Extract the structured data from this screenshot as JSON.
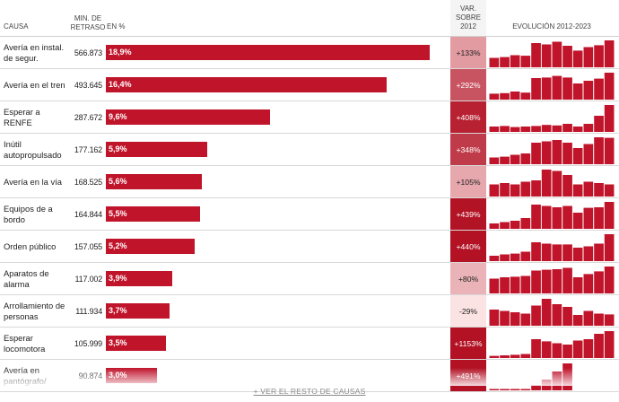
{
  "headers": {
    "causa": "Causa",
    "min_line1": "Min. de",
    "min_line2": "retraso",
    "pct": "En %",
    "var_line1": "Var.",
    "var_line2": "sobre",
    "var_line3": "2012",
    "evolucion": "Evolución 2012-2023"
  },
  "colors": {
    "bar": "#c0142a",
    "var_scale_low": "#fbe3e3",
    "var_scale_high": "#b21224"
  },
  "chart_data": {
    "type": "table",
    "columns": [
      "Causa",
      "Min. de retraso",
      "En %",
      "Var. sobre 2012",
      "Evolución 2012-2023"
    ],
    "evolution_years": [
      2012,
      2013,
      2014,
      2015,
      2016,
      2017,
      2018,
      2019,
      2020,
      2021,
      2022,
      2023
    ],
    "rows": [
      {
        "causa": "Avería en instal. de segur.",
        "minutos": "566.873",
        "pct_label": "18,9%",
        "pct": 18.9,
        "var_label": "+133%",
        "var": 133,
        "evo": [
          35,
          38,
          45,
          43,
          90,
          85,
          95,
          80,
          62,
          75,
          82,
          100
        ]
      },
      {
        "causa": "Avería en el tren",
        "minutos": "493.645",
        "pct_label": "16,4%",
        "pct": 16.4,
        "var_label": "+292%",
        "var": 292,
        "evo": [
          22,
          24,
          30,
          26,
          80,
          82,
          88,
          82,
          60,
          70,
          78,
          100
        ]
      },
      {
        "causa": "Esperar a RENFE",
        "minutos": "287.672",
        "pct_label": "9,6%",
        "pct": 9.6,
        "var_label": "+408%",
        "var": 408,
        "evo": [
          20,
          22,
          18,
          20,
          22,
          26,
          24,
          30,
          20,
          30,
          60,
          100
        ]
      },
      {
        "causa": "Inútil autopropulsado",
        "minutos": "177.162",
        "pct_label": "5,9%",
        "pct": 5.9,
        "var_label": "+348%",
        "var": 348,
        "evo": [
          25,
          28,
          35,
          40,
          80,
          85,
          90,
          80,
          60,
          75,
          100,
          98
        ]
      },
      {
        "causa": "Avería en la vía",
        "minutos": "168.525",
        "pct_label": "5,6%",
        "pct": 5.6,
        "var_label": "+105%",
        "var": 105,
        "evo": [
          45,
          50,
          45,
          55,
          60,
          100,
          95,
          80,
          45,
          55,
          50,
          45
        ]
      },
      {
        "causa": "Equipos de a bordo",
        "minutos": "164.844",
        "pct_label": "5,5%",
        "pct": 5.5,
        "var_label": "+439%",
        "var": 439,
        "evo": [
          20,
          25,
          30,
          40,
          90,
          85,
          80,
          85,
          60,
          78,
          80,
          100
        ]
      },
      {
        "causa": "Orden público",
        "minutos": "157.055",
        "pct_label": "5,2%",
        "pct": 5.2,
        "var_label": "+440%",
        "var": 440,
        "evo": [
          20,
          25,
          28,
          35,
          70,
          65,
          62,
          62,
          50,
          55,
          65,
          100
        ]
      },
      {
        "causa": "Aparatos de alarma",
        "minutos": "117.002",
        "pct_label": "3,9%",
        "pct": 3.9,
        "var_label": "+80%",
        "var": 80,
        "evo": [
          55,
          60,
          62,
          65,
          85,
          88,
          90,
          95,
          60,
          72,
          82,
          100
        ]
      },
      {
        "causa": "Arrollamiento de personas",
        "minutos": "111.934",
        "pct_label": "3,7%",
        "pct": 3.7,
        "var_label": "-29%",
        "var": -29,
        "evo": [
          60,
          55,
          50,
          45,
          75,
          100,
          80,
          70,
          40,
          55,
          45,
          42
        ]
      },
      {
        "causa": "Esperar locomotora",
        "minutos": "105.999",
        "pct_label": "3,5%",
        "pct": 3.5,
        "var_label": "+1153%",
        "var": 1153,
        "evo": [
          8,
          10,
          12,
          15,
          70,
          62,
          55,
          50,
          65,
          70,
          90,
          100
        ]
      },
      {
        "causa": "Avería en pantógrafo/",
        "minutos": "90.874",
        "pct_label": "3,0%",
        "pct": 3.0,
        "var_label": "+491%",
        "var": 491,
        "evo": [
          5,
          5,
          5,
          5,
          20,
          40,
          70,
          100,
          0,
          0,
          0,
          0
        ]
      }
    ]
  },
  "footer": {
    "more_link": "+ Ver el resto de causas"
  }
}
